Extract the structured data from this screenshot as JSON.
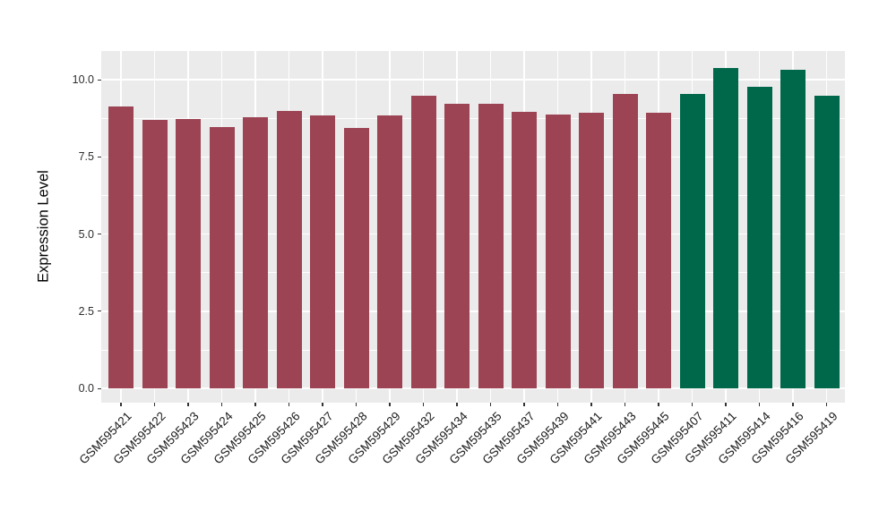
{
  "figure": {
    "background": "#ffffff"
  },
  "chart_data": {
    "type": "bar",
    "title": "",
    "xlabel": "",
    "ylabel": "Expression Level",
    "categories": [
      "GSM595421",
      "GSM595422",
      "GSM595423",
      "GSM595424",
      "GSM595425",
      "GSM595426",
      "GSM595427",
      "GSM595428",
      "GSM595429",
      "GSM595432",
      "GSM595434",
      "GSM595435",
      "GSM595437",
      "GSM595439",
      "GSM595441",
      "GSM595443",
      "GSM595445",
      "GSM595407",
      "GSM595411",
      "GSM595414",
      "GSM595416",
      "GSM595419"
    ],
    "values": [
      9.14,
      8.71,
      8.74,
      8.47,
      8.78,
      8.98,
      8.83,
      8.45,
      8.84,
      9.47,
      9.21,
      9.21,
      8.97,
      8.88,
      8.94,
      9.55,
      8.92,
      9.55,
      10.39,
      9.78,
      10.31,
      9.49
    ],
    "bar_groups": [
      "red",
      "red",
      "red",
      "red",
      "red",
      "red",
      "red",
      "red",
      "red",
      "red",
      "red",
      "red",
      "red",
      "red",
      "red",
      "red",
      "red",
      "green",
      "green",
      "green",
      "green",
      "green"
    ],
    "group_colors": {
      "red": "#9C4453",
      "green": "#00684A"
    },
    "y_ticks": [
      0.0,
      2.5,
      5.0,
      7.5,
      10.0
    ],
    "y_tick_labels": [
      "0.0",
      "2.5",
      "5.0",
      "7.5",
      "10.0"
    ],
    "y_minor_ticks": [
      1.25,
      3.75,
      6.25,
      8.75
    ],
    "ylim": [
      -0.46,
      10.93
    ],
    "grid": "on",
    "legend": "none",
    "x_tick_rotation_deg": 45,
    "panel_background": "#EBEBEB",
    "grid_color": "#FFFFFF",
    "tick_color": "#333333"
  }
}
